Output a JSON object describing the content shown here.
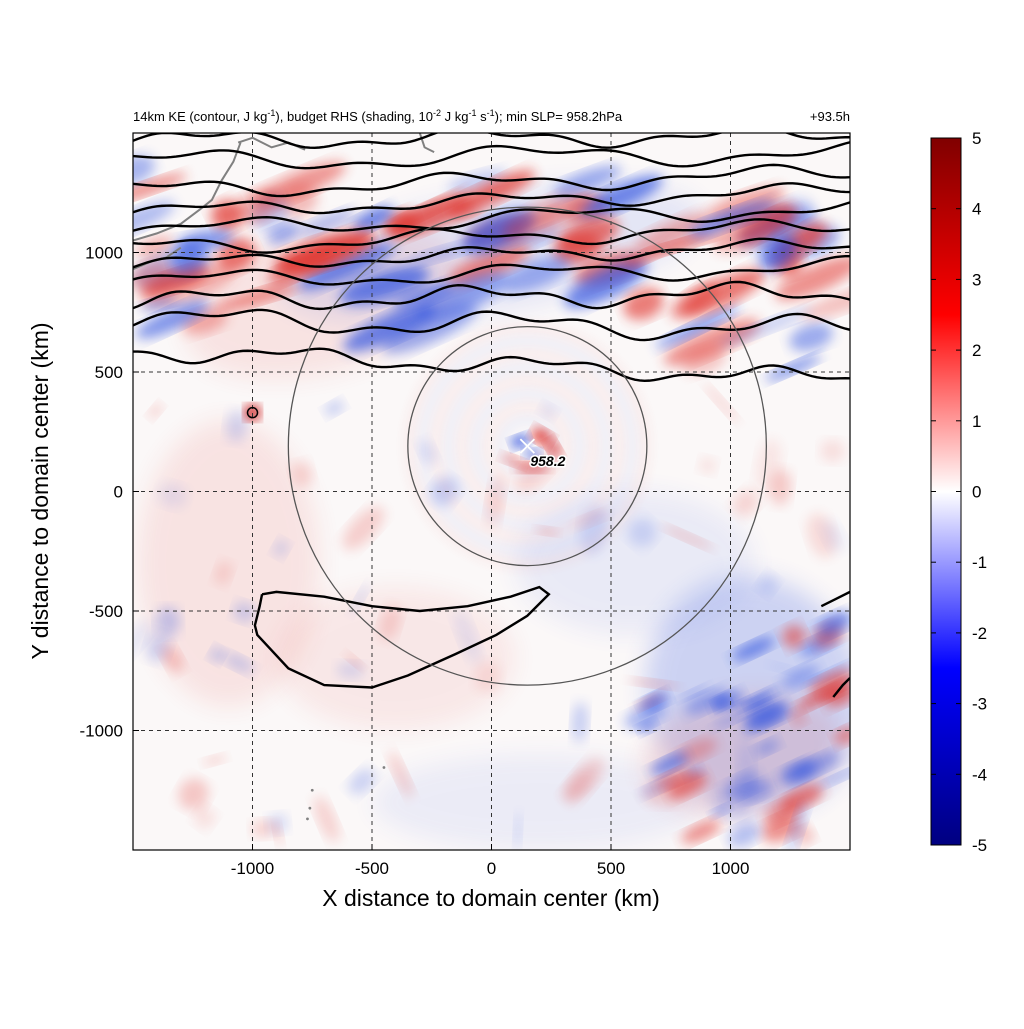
{
  "chart_data": {
    "type": "heatmap",
    "title": {
      "prefix": "14km KE (contour, J kg",
      "sup1": "-1",
      "mid1": "), budget RHS (shading, 10",
      "sup2": "-2",
      "mid2": " J kg",
      "sup3": "-1",
      "mid3": " s",
      "sup4": "-1",
      "suffix": "); min SLP= 958.2hPa"
    },
    "time_label": "+93.5h",
    "xlabel": "X distance to domain center (km)",
    "ylabel": "Y distance to domain center (km)",
    "xlim": [
      -1500,
      1500
    ],
    "ylim": [
      -1500,
      1500
    ],
    "x_ticks": [
      -1000,
      -500,
      0,
      500,
      1000
    ],
    "x_tick_labels": [
      "-1000",
      "-500",
      "0",
      "500",
      "1000"
    ],
    "y_ticks": [
      -1000,
      -500,
      0,
      500,
      1000
    ],
    "y_tick_labels": [
      "-1000",
      "-500",
      "0",
      "500",
      "1000"
    ],
    "grid": true,
    "colorbar": {
      "min": -5,
      "max": 5,
      "ticks": [
        5,
        4,
        3,
        2,
        1,
        0,
        -1,
        -2,
        -3,
        -4,
        -5
      ],
      "tick_labels": [
        "5",
        "4",
        "3",
        "2",
        "1",
        "0",
        "-1",
        "-2",
        "-3",
        "-4",
        "-5"
      ],
      "colormap": [
        "#000080",
        "#0000ff",
        "#ffffff",
        "#ff0000",
        "#800000"
      ]
    },
    "storm_center": {
      "x": 150,
      "y": 190,
      "label": "958.2"
    },
    "range_circles_km": [
      500,
      1000
    ],
    "isolated_feature": {
      "x": -1000,
      "y": 330
    },
    "colors": {
      "positive": "#e0302a",
      "negative": "#2a4fe0",
      "contour": "#000000",
      "coast": "#808080",
      "circle": "#555555"
    }
  }
}
